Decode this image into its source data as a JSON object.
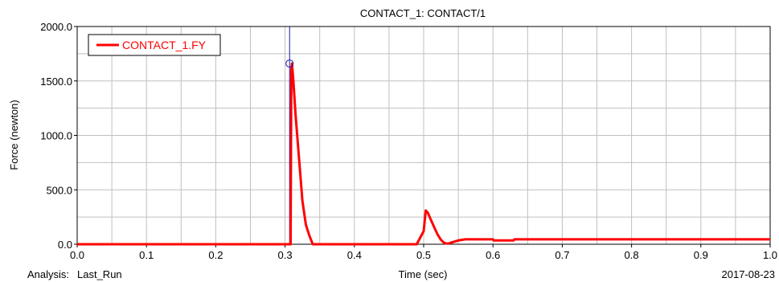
{
  "chart_data": {
    "type": "line",
    "title": "CONTACT_1: CONTACT/1",
    "xlabel": "Time (sec)",
    "ylabel": "Force (newton)",
    "xlim": [
      0.0,
      1.0
    ],
    "ylim": [
      0.0,
      2000.0
    ],
    "x_ticks": [
      "0.0",
      "0.1",
      "0.2",
      "0.3",
      "0.4",
      "0.5",
      "0.6",
      "0.7",
      "0.8",
      "0.9",
      "1.0"
    ],
    "y_ticks": [
      "0.0",
      "500.0",
      "1000.0",
      "1500.0",
      "2000.0"
    ],
    "grid": true,
    "legend_position": "top-left",
    "series": [
      {
        "name": "CONTACT_1.FY",
        "color": "#ff0000",
        "x": [
          0.0,
          0.305,
          0.308,
          0.309,
          0.31,
          0.312,
          0.315,
          0.32,
          0.325,
          0.33,
          0.335,
          0.34,
          0.36,
          0.4,
          0.45,
          0.49,
          0.5,
          0.503,
          0.506,
          0.51,
          0.515,
          0.52,
          0.525,
          0.53,
          0.535,
          0.54,
          0.545,
          0.55,
          0.56,
          0.6,
          0.601,
          0.63,
          0.631,
          0.7,
          0.8,
          0.9,
          1.0
        ],
        "y": [
          0.0,
          0.0,
          0.0,
          1600.0,
          1660.0,
          1500.0,
          1200.0,
          800.0,
          400.0,
          180.0,
          80.0,
          0.0,
          0.0,
          0.0,
          0.0,
          0.0,
          120.0,
          310.0,
          290.0,
          230.0,
          160.0,
          90.0,
          40.0,
          10.0,
          5.0,
          15.0,
          25.0,
          35.0,
          45.0,
          45.0,
          35.0,
          35.0,
          45.0,
          45.0,
          45.0,
          45.0,
          45.0
        ]
      }
    ],
    "marker": {
      "x": 0.31,
      "y": 1660.0
    }
  },
  "footer": {
    "analysis_label": "Analysis:",
    "analysis_name": "Last_Run",
    "date": "2017-08-23"
  }
}
